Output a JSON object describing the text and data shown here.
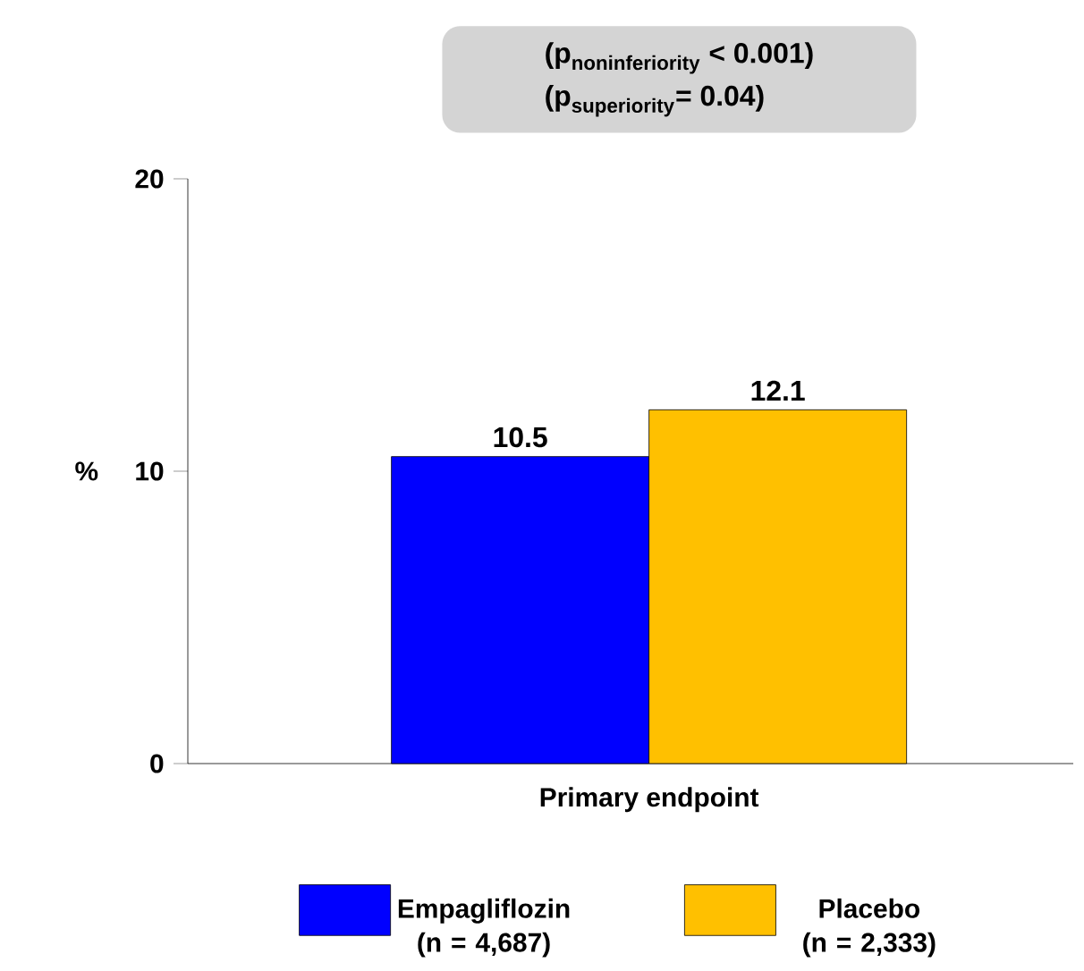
{
  "chart_data": {
    "type": "bar",
    "categories": [
      "Primary endpoint"
    ],
    "series": [
      {
        "name": "Empagliflozin (n = 4,687)",
        "color": "#0000ff",
        "values": [
          10.5
        ]
      },
      {
        "name": "Placebo (n = 2,333)",
        "color": "#ffc000",
        "values": [
          12.1
        ]
      }
    ],
    "ylabel": "%",
    "ylim": [
      0,
      20
    ],
    "yticks": [
      0,
      10,
      20
    ],
    "data_labels": true,
    "legend": "bottom",
    "grid": false,
    "annotations": [
      "\\text{(p}_{\\text{noninferiority}}\\text{ < 0.001)}",
      "\\text{(p}_{\\text{superiority}}\\text{= 0.04)}"
    ]
  }
}
